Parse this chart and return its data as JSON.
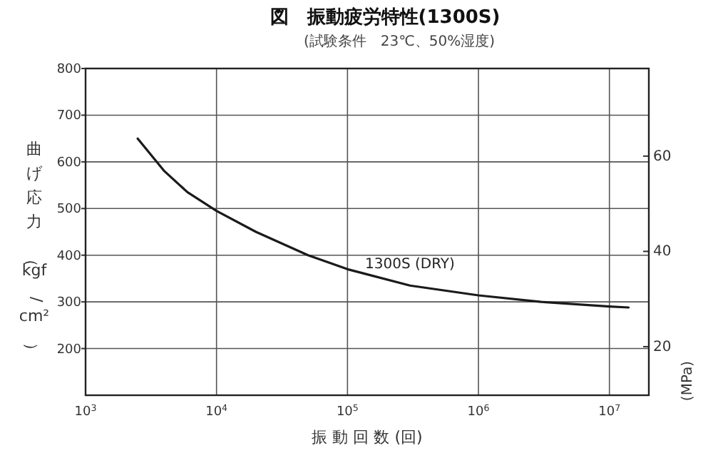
{
  "chart_data": {
    "type": "line",
    "title": "図　振動疲労特性(1300S)",
    "subtitle": "(試験条件　23℃、50%湿度)",
    "xlabel": "振 動 回 数 (回)",
    "ylabel": "曲げ応力（kgf/cm²）",
    "y2label": "(MPa)",
    "log": "x",
    "xlim": [
      1000,
      20000000
    ],
    "xticks": [
      {
        "value": 1000,
        "label": "10$^{3}$"
      },
      {
        "value": 10000,
        "label": "10$^{4}$"
      },
      {
        "value": 100000,
        "label": "10$^{5}$"
      },
      {
        "value": 1000000,
        "label": "10$^{6}$"
      },
      {
        "value": 10000000,
        "label": "10$^{7}$"
      }
    ],
    "ylim": [
      100,
      800
    ],
    "yticks": [
      200,
      300,
      400,
      500,
      600,
      700,
      800
    ],
    "y2lim": [
      9.8,
      78.4
    ],
    "y2ticks": [
      20,
      40,
      60
    ],
    "grid": true,
    "marker": "none",
    "line_style": "solid",
    "series": [
      {
        "name": "1300S (DRY)",
        "color": "#1a1a1a",
        "x": [
          2500,
          4000,
          6000,
          10000,
          20000,
          50000,
          100000,
          300000,
          1000000,
          3000000,
          10000000,
          14000000
        ],
        "values": [
          650,
          580,
          535,
          495,
          450,
          400,
          370,
          335,
          314,
          300,
          290,
          288
        ]
      }
    ]
  }
}
